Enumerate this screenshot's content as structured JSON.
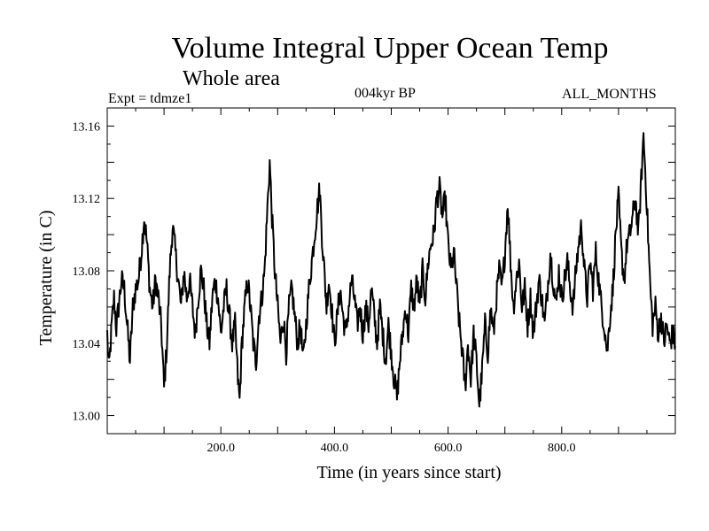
{
  "chart_data": {
    "type": "line",
    "title": "Volume Integral Upper Ocean Temp",
    "subtitle": "Whole area",
    "expt_label": "Expt = tdmze1",
    "period_label": "004kyr BP",
    "months_label": "ALL_MONTHS",
    "xlabel": "Time (in years since start)",
    "ylabel": "Temperature (in C)",
    "xlim": [
      0,
      1000
    ],
    "ylim": [
      12.99,
      13.17
    ],
    "xticks": [
      200,
      400,
      600,
      800
    ],
    "xtick_labels": [
      "200.0",
      "400.0",
      "600.0",
      "800.0"
    ],
    "yticks": [
      13.0,
      13.04,
      13.08,
      13.12,
      13.16
    ],
    "ytick_labels": [
      "13.00",
      "13.04",
      "13.08",
      "13.12",
      "13.16"
    ],
    "line_color": "#000000",
    "anchors": [
      [
        0,
        13.045
      ],
      [
        3,
        13.025
      ],
      [
        8,
        13.05
      ],
      [
        12,
        13.065
      ],
      [
        16,
        13.048
      ],
      [
        20,
        13.06
      ],
      [
        25,
        13.075
      ],
      [
        30,
        13.07
      ],
      [
        35,
        13.05
      ],
      [
        40,
        13.03
      ],
      [
        45,
        13.06
      ],
      [
        50,
        13.07
      ],
      [
        55,
        13.075
      ],
      [
        60,
        13.09
      ],
      [
        65,
        13.11
      ],
      [
        70,
        13.095
      ],
      [
        75,
        13.07
      ],
      [
        80,
        13.06
      ],
      [
        85,
        13.075
      ],
      [
        90,
        13.065
      ],
      [
        95,
        13.05
      ],
      [
        100,
        13.015
      ],
      [
        105,
        13.04
      ],
      [
        110,
        13.08
      ],
      [
        115,
        13.105
      ],
      [
        120,
        13.09
      ],
      [
        125,
        13.075
      ],
      [
        130,
        13.06
      ],
      [
        135,
        13.08
      ],
      [
        140,
        13.065
      ],
      [
        145,
        13.075
      ],
      [
        150,
        13.06
      ],
      [
        155,
        13.045
      ],
      [
        160,
        13.065
      ],
      [
        165,
        13.08
      ],
      [
        170,
        13.07
      ],
      [
        175,
        13.05
      ],
      [
        180,
        13.04
      ],
      [
        185,
        13.065
      ],
      [
        190,
        13.075
      ],
      [
        195,
        13.065
      ],
      [
        200,
        13.045
      ],
      [
        205,
        13.06
      ],
      [
        210,
        13.07
      ],
      [
        215,
        13.055
      ],
      [
        220,
        13.04
      ],
      [
        225,
        13.05
      ],
      [
        230,
        13.02
      ],
      [
        233,
        13.008
      ],
      [
        237,
        13.04
      ],
      [
        242,
        13.06
      ],
      [
        247,
        13.075
      ],
      [
        252,
        13.06
      ],
      [
        257,
        13.04
      ],
      [
        262,
        13.03
      ],
      [
        267,
        13.055
      ],
      [
        272,
        13.065
      ],
      [
        277,
        13.08
      ],
      [
        282,
        13.115
      ],
      [
        286,
        13.14
      ],
      [
        290,
        13.11
      ],
      [
        295,
        13.08
      ],
      [
        300,
        13.06
      ],
      [
        305,
        13.04
      ],
      [
        310,
        13.055
      ],
      [
        315,
        13.035
      ],
      [
        320,
        13.06
      ],
      [
        325,
        13.07
      ],
      [
        330,
        13.055
      ],
      [
        335,
        13.04
      ],
      [
        340,
        13.05
      ],
      [
        345,
        13.03
      ],
      [
        350,
        13.05
      ],
      [
        355,
        13.07
      ],
      [
        360,
        13.085
      ],
      [
        365,
        13.1
      ],
      [
        370,
        13.115
      ],
      [
        374,
        13.125
      ],
      [
        378,
        13.1
      ],
      [
        382,
        13.08
      ],
      [
        386,
        13.06
      ],
      [
        390,
        13.075
      ],
      [
        395,
        13.06
      ],
      [
        400,
        13.04
      ],
      [
        405,
        13.055
      ],
      [
        410,
        13.07
      ],
      [
        415,
        13.055
      ],
      [
        420,
        13.045
      ],
      [
        425,
        13.06
      ],
      [
        430,
        13.075
      ],
      [
        435,
        13.065
      ],
      [
        440,
        13.05
      ],
      [
        445,
        13.06
      ],
      [
        450,
        13.045
      ],
      [
        455,
        13.06
      ],
      [
        460,
        13.05
      ],
      [
        465,
        13.07
      ],
      [
        470,
        13.055
      ],
      [
        475,
        13.04
      ],
      [
        480,
        13.06
      ],
      [
        485,
        13.045
      ],
      [
        490,
        13.03
      ],
      [
        495,
        13.05
      ],
      [
        500,
        13.035
      ],
      [
        505,
        13.02
      ],
      [
        510,
        13.01
      ],
      [
        515,
        13.03
      ],
      [
        520,
        13.045
      ],
      [
        525,
        13.06
      ],
      [
        530,
        13.045
      ],
      [
        535,
        13.07
      ],
      [
        540,
        13.06
      ],
      [
        545,
        13.075
      ],
      [
        550,
        13.06
      ],
      [
        555,
        13.08
      ],
      [
        560,
        13.065
      ],
      [
        565,
        13.085
      ],
      [
        570,
        13.095
      ],
      [
        575,
        13.1
      ],
      [
        580,
        13.12
      ],
      [
        585,
        13.125
      ],
      [
        590,
        13.11
      ],
      [
        595,
        13.12
      ],
      [
        600,
        13.095
      ],
      [
        605,
        13.08
      ],
      [
        610,
        13.09
      ],
      [
        615,
        13.07
      ],
      [
        620,
        13.05
      ],
      [
        625,
        13.035
      ],
      [
        630,
        13.015
      ],
      [
        635,
        13.04
      ],
      [
        640,
        13.02
      ],
      [
        645,
        13.045
      ],
      [
        650,
        13.03
      ],
      [
        655,
        13.006
      ],
      [
        660,
        13.025
      ],
      [
        665,
        13.05
      ],
      [
        670,
        13.035
      ],
      [
        675,
        13.06
      ],
      [
        680,
        13.045
      ],
      [
        685,
        13.065
      ],
      [
        690,
        13.08
      ],
      [
        695,
        13.07
      ],
      [
        700,
        13.09
      ],
      [
        705,
        13.118
      ],
      [
        710,
        13.085
      ],
      [
        715,
        13.06
      ],
      [
        720,
        13.075
      ],
      [
        725,
        13.085
      ],
      [
        730,
        13.06
      ],
      [
        735,
        13.07
      ],
      [
        740,
        13.05
      ],
      [
        745,
        13.065
      ],
      [
        750,
        13.045
      ],
      [
        755,
        13.06
      ],
      [
        760,
        13.075
      ],
      [
        765,
        13.065
      ],
      [
        770,
        13.05
      ],
      [
        775,
        13.07
      ],
      [
        780,
        13.09
      ],
      [
        785,
        13.075
      ],
      [
        790,
        13.06
      ],
      [
        795,
        13.08
      ],
      [
        800,
        13.065
      ],
      [
        805,
        13.075
      ],
      [
        810,
        13.085
      ],
      [
        815,
        13.07
      ],
      [
        820,
        13.06
      ],
      [
        825,
        13.08
      ],
      [
        830,
        13.095
      ],
      [
        835,
        13.105
      ],
      [
        840,
        13.08
      ],
      [
        845,
        13.065
      ],
      [
        850,
        13.085
      ],
      [
        855,
        13.07
      ],
      [
        860,
        13.09
      ],
      [
        865,
        13.075
      ],
      [
        870,
        13.06
      ],
      [
        875,
        13.05
      ],
      [
        880,
        13.035
      ],
      [
        885,
        13.055
      ],
      [
        890,
        13.07
      ],
      [
        895,
        13.1
      ],
      [
        900,
        13.12
      ],
      [
        905,
        13.09
      ],
      [
        910,
        13.075
      ],
      [
        915,
        13.095
      ],
      [
        920,
        13.1
      ],
      [
        925,
        13.11
      ],
      [
        930,
        13.12
      ],
      [
        935,
        13.1
      ],
      [
        940,
        13.13
      ],
      [
        944,
        13.155
      ],
      [
        948,
        13.13
      ],
      [
        952,
        13.1
      ],
      [
        956,
        13.07
      ],
      [
        960,
        13.05
      ],
      [
        965,
        13.06
      ],
      [
        970,
        13.045
      ],
      [
        975,
        13.055
      ],
      [
        980,
        13.04
      ],
      [
        985,
        13.05
      ],
      [
        990,
        13.04
      ],
      [
        995,
        13.045
      ],
      [
        1000,
        13.04
      ]
    ]
  }
}
